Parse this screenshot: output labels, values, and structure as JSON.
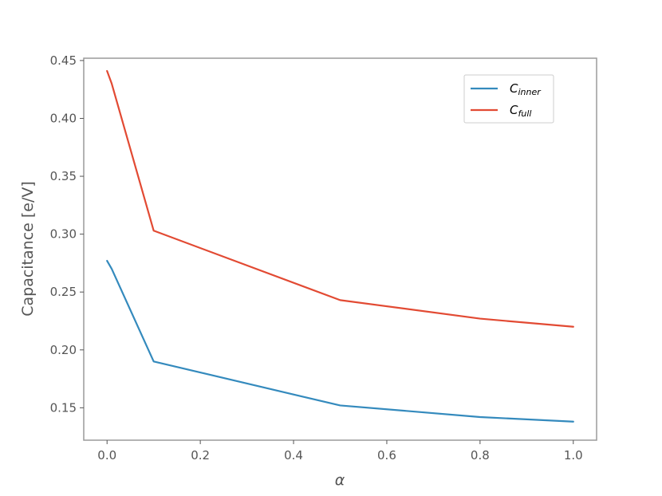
{
  "chart_data": {
    "type": "line",
    "title": "",
    "xlabel": "α",
    "ylabel": "Capacitance [e/V]",
    "xlim": [
      -0.05,
      1.05
    ],
    "ylim": [
      0.122,
      0.452
    ],
    "xticks": [
      0.0,
      0.2,
      0.4,
      0.6,
      0.8,
      1.0
    ],
    "xtick_labels": [
      "0.0",
      "0.2",
      "0.4",
      "0.6",
      "0.8",
      "1.0"
    ],
    "yticks": [
      0.15,
      0.2,
      0.25,
      0.3,
      0.35,
      0.4,
      0.45
    ],
    "ytick_labels": [
      "0.15",
      "0.20",
      "0.25",
      "0.30",
      "0.35",
      "0.40",
      "0.45"
    ],
    "grid": false,
    "legend_position": "top-right",
    "series": [
      {
        "name": "C_inner",
        "label_main": "C",
        "label_sub": "inner",
        "color": "#348abd",
        "x": [
          0.0,
          0.01,
          0.1,
          0.5,
          0.8,
          1.0
        ],
        "y": [
          0.277,
          0.27,
          0.19,
          0.152,
          0.142,
          0.138
        ]
      },
      {
        "name": "C_full",
        "label_main": "C",
        "label_sub": "full",
        "color": "#e24a33",
        "x": [
          0.0,
          0.01,
          0.1,
          0.5,
          0.8,
          1.0
        ],
        "y": [
          0.441,
          0.43,
          0.303,
          0.243,
          0.227,
          0.22
        ]
      }
    ]
  }
}
